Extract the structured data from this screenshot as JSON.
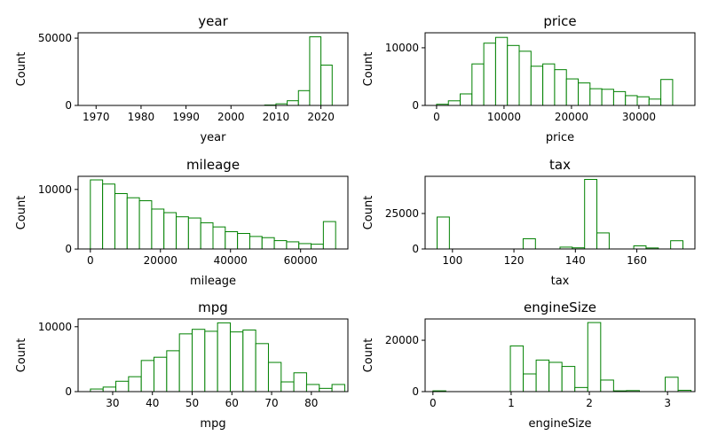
{
  "chart_data": [
    {
      "type": "bar",
      "title": "year",
      "xlabel": "year",
      "ylabel": "Count",
      "xlim": [
        1966,
        2026
      ],
      "ylim": [
        0,
        54000
      ],
      "xticks": [
        1970,
        1980,
        1990,
        2000,
        2010,
        2020
      ],
      "xtick_labels": [
        "1970",
        "1980",
        "1990",
        "2000",
        "2010",
        "2020"
      ],
      "yticks": [
        0,
        50000
      ],
      "ytick_labels": [
        "0",
        "50000"
      ],
      "grid": false,
      "bin_edges": [
        1970,
        1972.5,
        1975,
        1977.5,
        1980,
        1982.5,
        1985,
        1987.5,
        1990,
        1992.5,
        1995,
        1997.5,
        2000,
        2002.5,
        2005,
        2007.5,
        2010,
        2012.5,
        2015,
        2017.5,
        2020,
        2022.5
      ],
      "values": [
        0,
        0,
        0,
        0,
        0,
        0,
        0,
        0,
        0,
        0,
        0,
        0,
        0,
        0,
        0,
        300,
        1200,
        3500,
        11000,
        51000,
        30000
      ]
    },
    {
      "type": "bar",
      "title": "price",
      "xlabel": "price",
      "ylabel": "Count",
      "xlim": [
        -1700,
        38300
      ],
      "ylim": [
        0,
        12600
      ],
      "xticks": [
        0,
        10000,
        20000,
        30000
      ],
      "xtick_labels": [
        "0",
        "10000",
        "20000",
        "30000"
      ],
      "yticks": [
        0,
        10000
      ],
      "ytick_labels": [
        "0",
        "10000"
      ],
      "grid": false,
      "bin_edges": [
        0,
        1750,
        3500,
        5250,
        7000,
        8750,
        10500,
        12250,
        14000,
        15750,
        17500,
        19250,
        21000,
        22750,
        24500,
        26250,
        28000,
        29750,
        31500,
        33250,
        35000,
        36750
      ],
      "values": [
        200,
        800,
        2000,
        7200,
        10800,
        11800,
        10400,
        9400,
        6800,
        7200,
        6200,
        4600,
        3900,
        2900,
        2800,
        2400,
        1700,
        1500,
        1100,
        4500,
        0
      ]
    },
    {
      "type": "bar",
      "title": "mileage",
      "xlabel": "mileage",
      "ylabel": "Count",
      "xlim": [
        -3500,
        73500
      ],
      "ylim": [
        0,
        12200
      ],
      "xticks": [
        0,
        20000,
        40000,
        60000
      ],
      "xtick_labels": [
        "0",
        "20000",
        "40000",
        "60000"
      ],
      "yticks": [
        0,
        10000
      ],
      "ytick_labels": [
        "0",
        "10000"
      ],
      "grid": false,
      "bin_edges": [
        0,
        3500,
        7000,
        10500,
        14000,
        17500,
        21000,
        24500,
        28000,
        31500,
        35000,
        38500,
        42000,
        45500,
        49000,
        52500,
        56000,
        59500,
        63000,
        66500,
        70000
      ],
      "values": [
        11600,
        10900,
        9300,
        8600,
        8100,
        6700,
        6100,
        5400,
        5200,
        4400,
        3700,
        2900,
        2600,
        2100,
        1900,
        1400,
        1200,
        900,
        800,
        4600
      ]
    },
    {
      "type": "bar",
      "title": "tax",
      "xlabel": "tax",
      "ylabel": "Count",
      "xlim": [
        91.1,
        178.9
      ],
      "ylim": [
        0,
        51200
      ],
      "xticks": [
        100,
        120,
        140,
        160
      ],
      "xtick_labels": [
        "100",
        "120",
        "140",
        "160"
      ],
      "yticks": [
        0,
        25000
      ],
      "ytick_labels": [
        "0",
        "25000"
      ],
      "grid": false,
      "bin_edges": [
        95,
        99,
        103,
        107,
        111,
        115,
        119,
        123,
        127,
        131,
        135,
        139,
        143,
        147,
        151,
        155,
        159,
        163,
        167,
        171,
        175
      ],
      "values": [
        22500,
        0,
        0,
        0,
        0,
        0,
        0,
        7200,
        0,
        0,
        1300,
        800,
        49000,
        11300,
        0,
        0,
        2200,
        700,
        0,
        5800
      ]
    },
    {
      "type": "bar",
      "title": "mpg",
      "xlabel": "mpg",
      "ylabel": "Count",
      "xlim": [
        21.3,
        89.2
      ],
      "ylim": [
        0,
        11200
      ],
      "xticks": [
        30,
        40,
        50,
        60,
        70,
        80
      ],
      "xtick_labels": [
        "30",
        "40",
        "50",
        "60",
        "70",
        "80"
      ],
      "yticks": [
        0,
        10000
      ],
      "ytick_labels": [
        "0",
        "10000"
      ],
      "grid": false,
      "bin_edges": [
        24.4,
        27.6,
        30.8,
        34.0,
        37.2,
        40.4,
        43.6,
        46.8,
        50.0,
        53.2,
        56.4,
        59.6,
        62.8,
        66.0,
        69.2,
        72.4,
        75.6,
        78.8,
        82.0,
        85.2,
        88.4
      ],
      "values": [
        400,
        700,
        1600,
        2300,
        4800,
        5300,
        6300,
        8900,
        9600,
        9300,
        10600,
        9200,
        9500,
        7400,
        4500,
        1500,
        2900,
        1100,
        500,
        1100
      ]
    },
    {
      "type": "bar",
      "title": "engineSize",
      "xlabel": "engineSize",
      "ylabel": "Count",
      "xlim": [
        -0.1,
        3.35
      ],
      "ylim": [
        0,
        28300
      ],
      "xticks": [
        0,
        1,
        2,
        3
      ],
      "xtick_labels": [
        "0",
        "1",
        "2",
        "3"
      ],
      "yticks": [
        0,
        20000
      ],
      "ytick_labels": [
        "0",
        "20000"
      ],
      "grid": false,
      "bin_edges": [
        0,
        0.165,
        0.33,
        0.495,
        0.66,
        0.825,
        0.99,
        1.155,
        1.32,
        1.485,
        1.65,
        1.815,
        1.98,
        2.145,
        2.31,
        2.475,
        2.64,
        2.805,
        2.97,
        3.135,
        3.3
      ],
      "values": [
        300,
        0,
        0,
        0,
        0,
        0,
        17800,
        6900,
        12300,
        11400,
        9800,
        1600,
        26900,
        4500,
        300,
        400,
        0,
        0,
        5600,
        500
      ]
    }
  ]
}
